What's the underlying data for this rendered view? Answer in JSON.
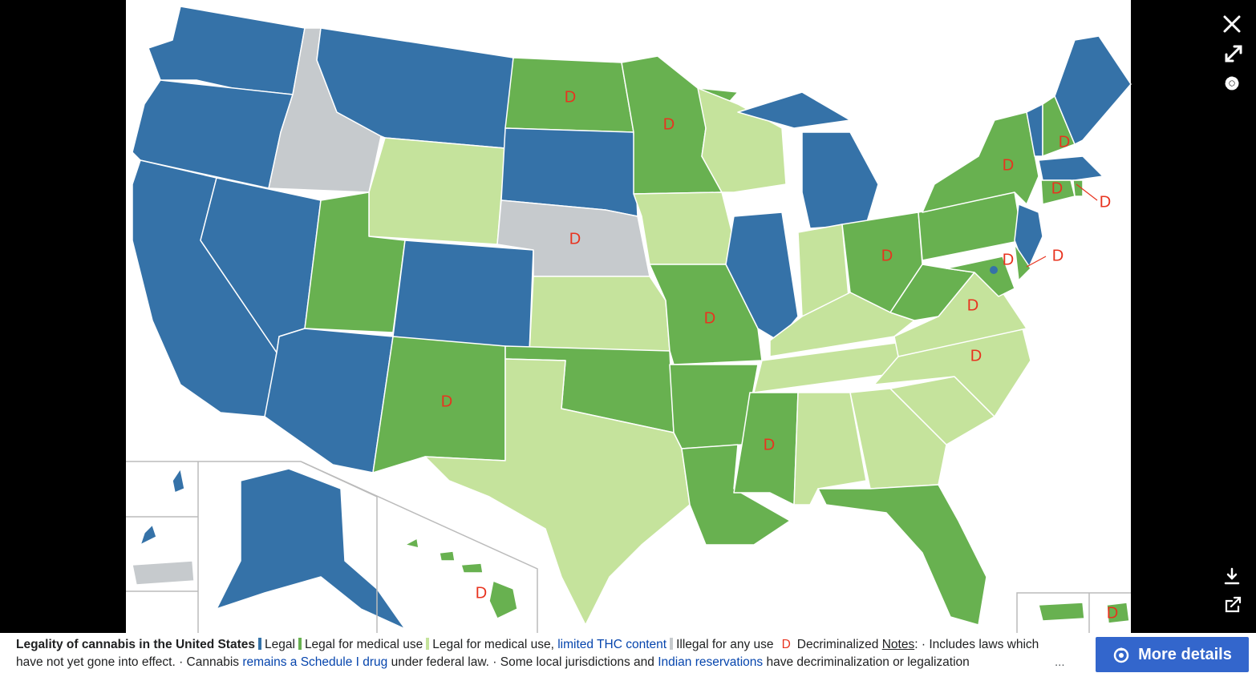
{
  "caption": {
    "title": "Legality of cannabis in the United States",
    "legend": [
      {
        "label": "Legal",
        "color": "#3572a8"
      },
      {
        "label": "Legal for medical use",
        "color": "#68b150"
      },
      {
        "label": "Legal for medical use,",
        "link": "limited THC content",
        "color": "#c5e39c"
      },
      {
        "label": "Illegal for any use",
        "color": "#c6cacd"
      }
    ],
    "decriminalized_symbol": "D",
    "decriminalized_label": "Decriminalized",
    "notes_label": "Notes",
    "notes": [
      {
        "text": ": · Includes laws which have not yet gone into effect. · Cannabis",
        "link": false
      },
      {
        "text": "remains a Schedule I drug",
        "link": true
      },
      {
        "text": "under federal law. · Some local jurisdictions and",
        "link": false
      },
      {
        "text": "Indian reservations",
        "link": true
      },
      {
        "text": "have decriminalization or legalization",
        "link": false
      }
    ],
    "ellipsis": "...",
    "more_details": "More details"
  }
}
